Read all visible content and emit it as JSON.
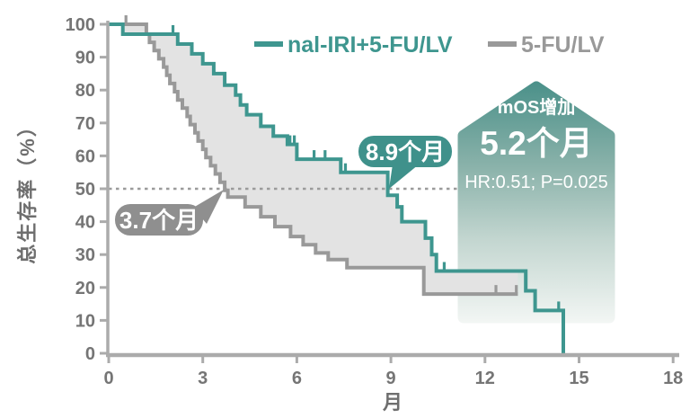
{
  "legend": {
    "series": [
      {
        "label": "nal-IRI+5-FU/LV",
        "color": "#3E968F"
      },
      {
        "label": "5-FU/LV",
        "color": "#999999"
      }
    ]
  },
  "axes": {
    "x": {
      "label": "月",
      "ticks": [
        0,
        3,
        6,
        9,
        12,
        15,
        18
      ],
      "range": [
        0,
        18
      ]
    },
    "y": {
      "label": "总生存率（%）",
      "ticks": [
        0,
        10,
        20,
        30,
        40,
        50,
        60,
        70,
        80,
        90,
        100
      ],
      "range": [
        0,
        100
      ]
    }
  },
  "annotations": {
    "median_line_pct": 50,
    "gray_median": {
      "text": "3.7个月",
      "value_months": 3.7,
      "color": "#8F8F8F"
    },
    "teal_median": {
      "text": "8.9个月",
      "value_months": 8.9,
      "color": "#3F918B"
    }
  },
  "badge": {
    "title": "mOS增加",
    "value": "5.2个月",
    "stats": "HR:0.51; P=0.025",
    "gradient_top": "#4A9089",
    "gradient_mid1": "#8AB2AA",
    "gradient_mid2": "#C3D6D0",
    "gradient_bottom": "#F4F7F5"
  },
  "chart_data": {
    "type": "line",
    "subtype": "kaplan-meier-step",
    "title": "",
    "xlabel": "月",
    "ylabel": "总生存率（%）",
    "xlim": [
      0,
      18
    ],
    "ylim": [
      0,
      100
    ],
    "grid": false,
    "median_survival_months": {
      "nal-IRI+5-FU/LV": 8.9,
      "5-FU/LV": 3.7
    },
    "hazard_ratio": 0.51,
    "p_value": 0.025,
    "band_fill_color": "#E3E3E3",
    "median_line_color": "#9B9B9B",
    "axis_color": "#ABABAB",
    "series": [
      {
        "name": "nal-IRI+5-FU/LV",
        "color": "#3E968F",
        "steps": [
          [
            0,
            100
          ],
          [
            0.45,
            97
          ],
          [
            2.2,
            94
          ],
          [
            2.65,
            91
          ],
          [
            3.0,
            88
          ],
          [
            3.35,
            85
          ],
          [
            3.7,
            81.5
          ],
          [
            4.05,
            78.5
          ],
          [
            4.2,
            75.5
          ],
          [
            4.4,
            72.5
          ],
          [
            4.85,
            69
          ],
          [
            5.25,
            66
          ],
          [
            5.7,
            63.5
          ],
          [
            6.0,
            59
          ],
          [
            7.4,
            55
          ],
          [
            8.9,
            48
          ],
          [
            9.2,
            44.5
          ],
          [
            9.35,
            40
          ],
          [
            10.1,
            35
          ],
          [
            10.3,
            30
          ],
          [
            10.45,
            25
          ],
          [
            13.3,
            19
          ],
          [
            13.6,
            13
          ],
          [
            14.5,
            0
          ]
        ],
        "end_month": 14.5,
        "censor_marks": [
          [
            2.05,
            97
          ],
          [
            5.78,
            63.5
          ],
          [
            5.92,
            63.5
          ],
          [
            6.55,
            59
          ],
          [
            6.9,
            59
          ],
          [
            7.55,
            55
          ],
          [
            10.7,
            25
          ],
          [
            14.35,
            13
          ]
        ]
      },
      {
        "name": "5-FU/LV",
        "color": "#999999",
        "steps": [
          [
            0,
            100
          ],
          [
            1.2,
            97
          ],
          [
            1.3,
            94.5
          ],
          [
            1.45,
            92
          ],
          [
            1.6,
            89.5
          ],
          [
            1.75,
            87
          ],
          [
            1.85,
            84.5
          ],
          [
            1.95,
            82
          ],
          [
            2.1,
            79.5
          ],
          [
            2.2,
            77
          ],
          [
            2.35,
            74.5
          ],
          [
            2.5,
            72
          ],
          [
            2.6,
            69.5
          ],
          [
            2.75,
            67
          ],
          [
            2.85,
            64.5
          ],
          [
            3.0,
            62
          ],
          [
            3.1,
            59.5
          ],
          [
            3.25,
            57
          ],
          [
            3.4,
            54.5
          ],
          [
            3.55,
            52
          ],
          [
            3.7,
            49.5
          ],
          [
            3.8,
            47.5
          ],
          [
            4.35,
            44.5
          ],
          [
            4.85,
            41.5
          ],
          [
            5.3,
            38.5
          ],
          [
            5.8,
            35.5
          ],
          [
            6.2,
            33
          ],
          [
            6.6,
            30.5
          ],
          [
            7.0,
            28.5
          ],
          [
            7.6,
            26
          ],
          [
            10.05,
            18
          ]
        ],
        "end_month": 13.05,
        "censor_marks": [
          [
            0.55,
            100
          ],
          [
            12.35,
            18
          ],
          [
            13.0,
            18
          ]
        ]
      }
    ]
  }
}
